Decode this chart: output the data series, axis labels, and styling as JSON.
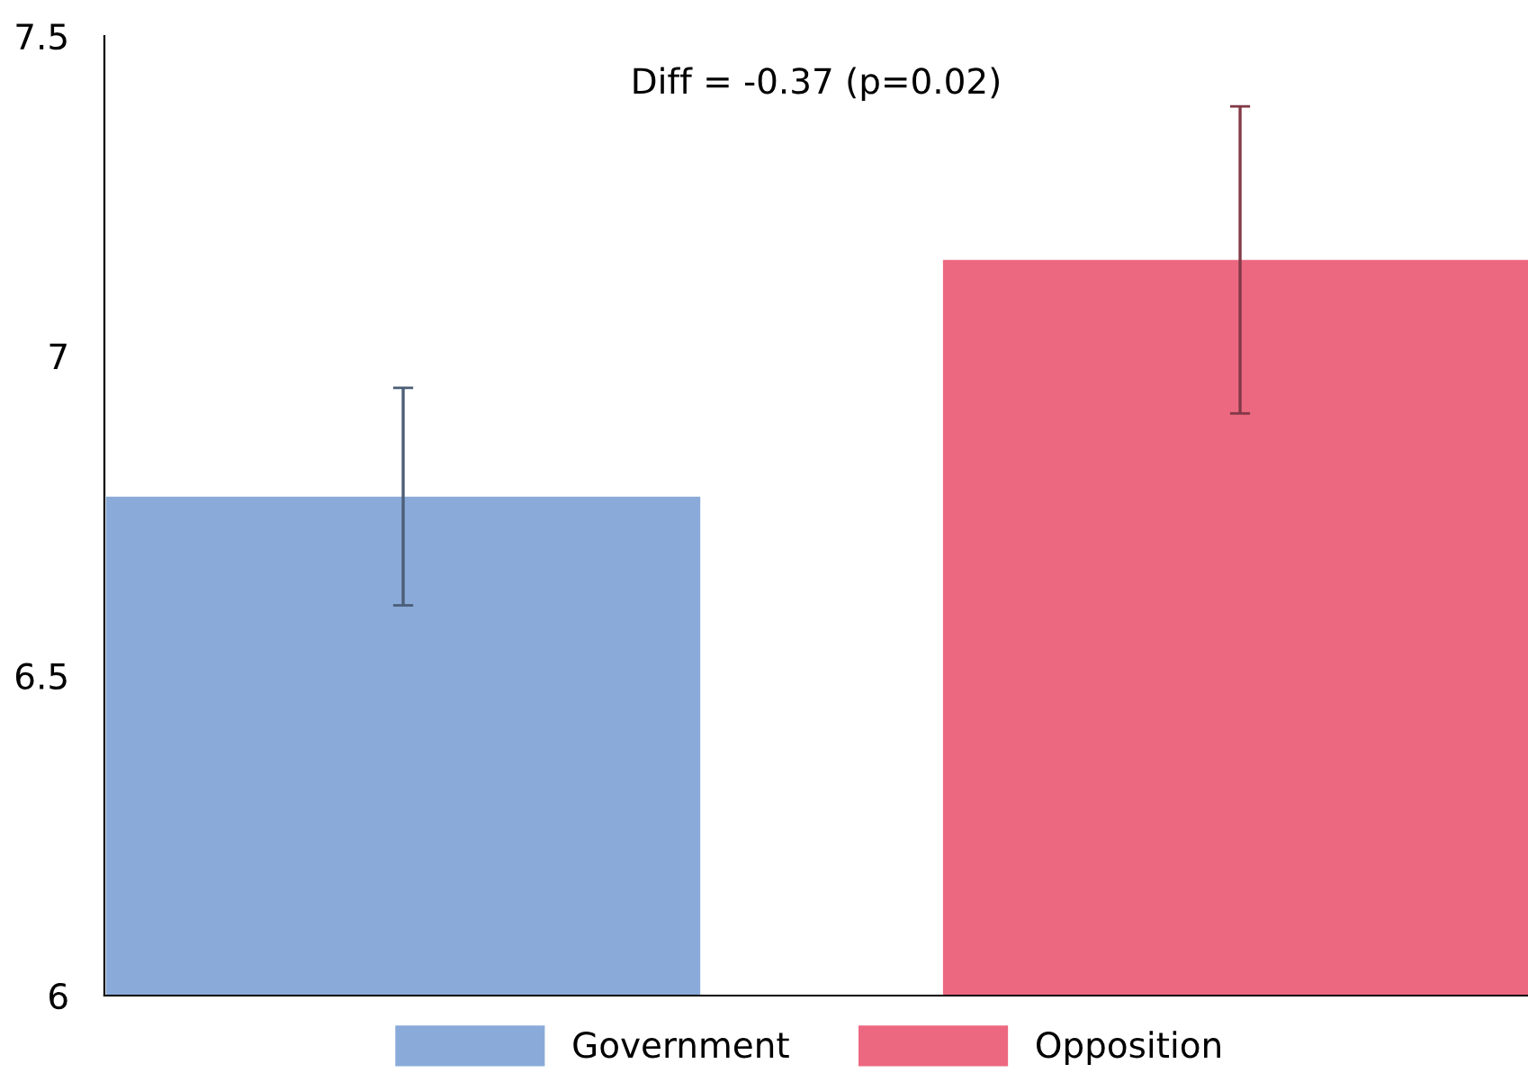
{
  "chart_data": {
    "type": "bar",
    "categories": [
      null,
      null
    ],
    "series": [
      {
        "name": "Government",
        "color": "#8aaad9",
        "values": [
          6.78,
          null
        ],
        "errors": [
          [
            6.61,
            6.95
          ],
          null
        ]
      },
      {
        "name": "Opposition",
        "color": "#ec6881",
        "values": [
          null,
          7.15
        ],
        "errors": [
          null,
          [
            6.91,
            7.39
          ]
        ]
      }
    ],
    "ylim": [
      6,
      7.5
    ],
    "yticks": [
      6,
      6.5,
      7,
      7.5
    ],
    "annotations": [
      "Diff = -0.37 (p=0.02)"
    ],
    "legend": "bottom",
    "grid": false,
    "tick_labels": "y"
  }
}
